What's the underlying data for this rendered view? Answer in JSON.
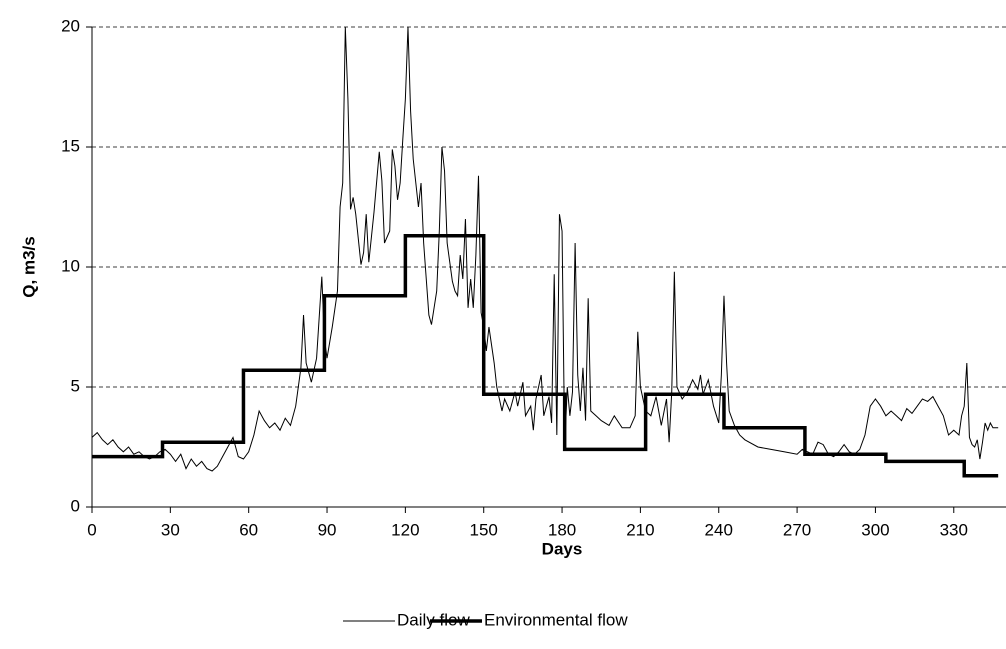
{
  "chart_data": {
    "type": "line",
    "x_label": "Days",
    "y_label": "Q, m3/s",
    "xlim": [
      0,
      350
    ],
    "ylim": [
      0,
      20
    ],
    "xticks": [
      0,
      30,
      60,
      90,
      120,
      150,
      180,
      210,
      240,
      270,
      300,
      330
    ],
    "yticks": [
      0,
      5,
      10,
      15,
      20
    ],
    "grid": true,
    "legend": "bottom",
    "series": [
      {
        "name": "Daily flow",
        "color": "#000000",
        "line_width": 1,
        "x": [
          0,
          2,
          4,
          6,
          8,
          10,
          12,
          14,
          16,
          18,
          20,
          22,
          24,
          26,
          28,
          30,
          32,
          34,
          36,
          38,
          40,
          42,
          44,
          46,
          48,
          50,
          52,
          54,
          56,
          58,
          60,
          62,
          64,
          66,
          68,
          70,
          72,
          74,
          76,
          78,
          80,
          81,
          82,
          84,
          86,
          88,
          89,
          90,
          92,
          94,
          95,
          96,
          97,
          98,
          99,
          100,
          101,
          103,
          104,
          105,
          106,
          108,
          110,
          111,
          112,
          114,
          115,
          116,
          117,
          118,
          119,
          120,
          121,
          122,
          123,
          125,
          126,
          127,
          128,
          129,
          130,
          132,
          133,
          134,
          135,
          136,
          137,
          138,
          139,
          140,
          141,
          142,
          143,
          144,
          145,
          146,
          147,
          148,
          149,
          150,
          151,
          152,
          154,
          155,
          156,
          157,
          158,
          160,
          162,
          163,
          165,
          166,
          168,
          169,
          170,
          172,
          173,
          175,
          176,
          177,
          178,
          179,
          180,
          181,
          182,
          183,
          184,
          185,
          186,
          187,
          188,
          189,
          190,
          191,
          193,
          195,
          198,
          200,
          203,
          206,
          208,
          209,
          210,
          212,
          214,
          216,
          218,
          220,
          221,
          222,
          223,
          224,
          226,
          228,
          230,
          232,
          233,
          234,
          236,
          238,
          240,
          241,
          242,
          243,
          244,
          246,
          248,
          250,
          255,
          260,
          265,
          270,
          272,
          274,
          276,
          278,
          280,
          282,
          284,
          286,
          288,
          290,
          292,
          294,
          296,
          298,
          300,
          302,
          304,
          306,
          308,
          310,
          312,
          314,
          316,
          318,
          320,
          322,
          324,
          326,
          328,
          330,
          332,
          333,
          334,
          335,
          336,
          337,
          338,
          339,
          340,
          341,
          342,
          343,
          344,
          345,
          347
        ],
        "values": [
          2.9,
          3.1,
          2.8,
          2.6,
          2.8,
          2.5,
          2.3,
          2.5,
          2.2,
          2.3,
          2.1,
          2.0,
          2.1,
          2.3,
          2.4,
          2.2,
          1.9,
          2.2,
          1.6,
          2.0,
          1.7,
          1.9,
          1.6,
          1.5,
          1.7,
          2.1,
          2.5,
          2.9,
          2.1,
          2.0,
          2.3,
          3.0,
          4.0,
          3.6,
          3.3,
          3.5,
          3.2,
          3.7,
          3.4,
          4.2,
          5.8,
          8.0,
          6.0,
          5.2,
          6.2,
          9.6,
          7.0,
          6.2,
          7.5,
          9.0,
          12.5,
          13.5,
          20,
          17,
          12.4,
          12.9,
          12.2,
          10.1,
          10.6,
          12.2,
          10.2,
          12.3,
          14.8,
          13.6,
          11.0,
          11.5,
          14.9,
          14.2,
          12.8,
          13.5,
          15.3,
          17.0,
          20,
          16.5,
          14.5,
          12.5,
          13.5,
          11.0,
          9.5,
          8.0,
          7.6,
          9.0,
          11.5,
          15.0,
          14.0,
          11.0,
          10.2,
          9.4,
          9.0,
          8.8,
          10.5,
          9.5,
          12.0,
          8.3,
          9.5,
          8.3,
          10.5,
          13.8,
          8.1,
          7.5,
          6.5,
          7.5,
          6.0,
          5.0,
          4.5,
          4.0,
          4.5,
          4.0,
          4.8,
          4.2,
          5.2,
          3.8,
          4.2,
          3.2,
          4.5,
          5.5,
          3.8,
          4.6,
          3.5,
          9.7,
          3.0,
          12.2,
          11.5,
          2.5,
          5.0,
          3.8,
          4.8,
          11.0,
          5.5,
          4.0,
          5.8,
          3.6,
          8.7,
          4.0,
          3.8,
          3.6,
          3.4,
          3.8,
          3.3,
          3.3,
          3.8,
          7.3,
          5.0,
          4.0,
          3.8,
          4.6,
          3.4,
          4.5,
          2.7,
          4.8,
          9.8,
          5.0,
          4.5,
          4.8,
          5.3,
          4.9,
          5.5,
          4.7,
          5.3,
          4.2,
          3.5,
          5.5,
          8.8,
          6.0,
          4.0,
          3.4,
          3.0,
          2.8,
          2.5,
          2.4,
          2.3,
          2.2,
          2.4,
          2.3,
          2.2,
          2.7,
          2.6,
          2.2,
          2.1,
          2.3,
          2.6,
          2.3,
          2.2,
          2.4,
          3.0,
          4.2,
          4.5,
          4.2,
          3.8,
          4.0,
          3.8,
          3.6,
          4.1,
          3.9,
          4.2,
          4.5,
          4.4,
          4.6,
          4.2,
          3.8,
          3.0,
          3.2,
          3.0,
          3.8,
          4.2,
          6.0,
          2.9,
          2.6,
          2.5,
          2.8,
          2.0,
          2.7,
          3.5,
          3.2,
          3.5,
          3.3,
          3.3
        ]
      },
      {
        "name": "Environmental flow",
        "color": "#000000",
        "line_width": 3.5,
        "x": [
          0,
          27,
          27,
          58,
          58,
          89,
          89,
          120,
          120,
          150,
          150,
          181,
          181,
          212,
          212,
          242,
          242,
          273,
          273,
          304,
          304,
          334,
          334,
          347
        ],
        "values": [
          2.1,
          2.1,
          2.7,
          2.7,
          5.7,
          5.7,
          8.8,
          8.8,
          11.3,
          11.3,
          4.7,
          4.7,
          2.4,
          2.4,
          4.7,
          4.7,
          3.3,
          3.3,
          2.2,
          2.2,
          1.9,
          1.9,
          1.3,
          1.3
        ]
      }
    ]
  }
}
